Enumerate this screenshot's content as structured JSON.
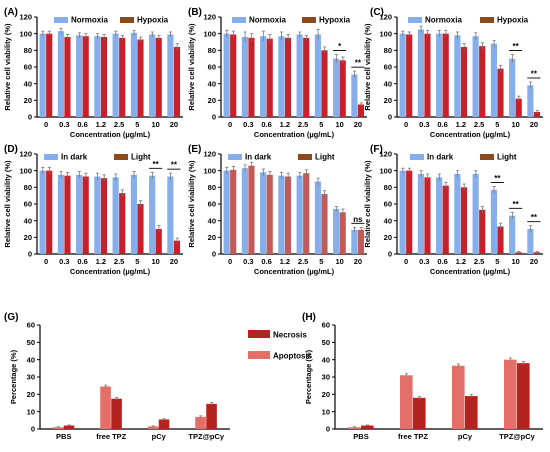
{
  "colors": {
    "normoxia": "#86aeea",
    "hypoxia": "#c8202a",
    "dark": "#86aeea",
    "light": "#c8202a",
    "light_legend": "#8a4a1e",
    "hypoxia_legend": "#8a4a1e",
    "necrosis": "#b3231f",
    "apoptosis": "#e46f69",
    "light_alt": "#c25a57"
  },
  "chart_data": [
    {
      "id": "A",
      "label": "(A)",
      "type": "bar",
      "xlabel": "Concentration (µg/mL)",
      "ylabel": "Relative cell viability (%)",
      "ylim": [
        0,
        120
      ],
      "yticks": [
        0,
        20,
        40,
        60,
        80,
        100,
        120
      ],
      "categories": [
        "0",
        "0.3",
        "0.6",
        "1.2",
        "2.5",
        "5",
        "10",
        "20"
      ],
      "legend": {
        "placement": "top",
        "entries": [
          "Normoxia",
          "Hypoxia"
        ]
      },
      "series": [
        {
          "name": "Normoxia",
          "values": [
            100,
            103,
            98,
            97,
            100,
            101,
            99,
            99
          ],
          "errors": [
            3,
            3,
            3,
            3,
            3,
            3,
            3,
            3
          ]
        },
        {
          "name": "Hypoxia",
          "values": [
            100,
            96,
            97,
            96,
            95,
            93,
            95,
            84
          ],
          "errors": [
            3,
            3,
            3,
            3,
            3,
            3,
            3,
            4
          ]
        }
      ],
      "significance": []
    },
    {
      "id": "B",
      "label": "(B)",
      "type": "bar",
      "xlabel": "Concentration (µg/mL)",
      "ylabel": "Relative cell viability (%)",
      "ylim": [
        0,
        120
      ],
      "yticks": [
        0,
        20,
        40,
        60,
        80,
        100,
        120
      ],
      "categories": [
        "0",
        "0.3",
        "0.6",
        "1.2",
        "2.5",
        "5",
        "10",
        "20"
      ],
      "legend": {
        "placement": "top",
        "entries": [
          "Normoxia",
          "Hypoxia"
        ]
      },
      "series": [
        {
          "name": "Normoxia",
          "values": [
            100,
            96,
            97,
            97,
            99,
            99,
            70,
            51
          ],
          "errors": [
            4,
            6,
            6,
            5,
            3,
            6,
            5,
            4
          ]
        },
        {
          "name": "Hypoxia",
          "values": [
            99,
            95,
            94,
            95,
            95,
            80,
            68,
            15
          ],
          "errors": [
            4,
            5,
            5,
            4,
            3,
            4,
            4,
            2
          ]
        }
      ],
      "significance": [
        {
          "category_index": 6,
          "text": "*"
        },
        {
          "category_index": 7,
          "text": "**"
        }
      ]
    },
    {
      "id": "C",
      "label": "(C)",
      "type": "bar",
      "xlabel": "Concentration (µg/mL)",
      "ylabel": "Relative cell viability (%)",
      "ylim": [
        0,
        120
      ],
      "yticks": [
        0,
        20,
        40,
        60,
        80,
        100,
        120
      ],
      "categories": [
        "0",
        "0.3",
        "0.6",
        "1.2",
        "2.5",
        "5",
        "10",
        "20"
      ],
      "legend": {
        "placement": "top",
        "entries": [
          "Normoxia",
          "Hypoxia"
        ]
      },
      "series": [
        {
          "name": "Normoxia",
          "values": [
            100,
            105,
            100,
            98,
            97,
            88,
            70,
            38
          ],
          "errors": [
            3,
            4,
            4,
            4,
            4,
            4,
            5,
            4
          ]
        },
        {
          "name": "Hypoxia",
          "values": [
            99,
            100,
            100,
            84,
            85,
            58,
            22,
            6
          ],
          "errors": [
            3,
            4,
            4,
            4,
            4,
            4,
            3,
            2
          ]
        }
      ],
      "significance": [
        {
          "category_index": 6,
          "text": "**"
        },
        {
          "category_index": 7,
          "text": "**"
        }
      ]
    },
    {
      "id": "D",
      "label": "(D)",
      "type": "bar",
      "xlabel": "Concentration (µg/mL)",
      "ylabel": "Relative cell viability (%)",
      "ylim": [
        0,
        120
      ],
      "yticks": [
        0,
        20,
        40,
        60,
        80,
        100,
        120
      ],
      "categories": [
        "0",
        "0.3",
        "0.6",
        "1.2",
        "2.5",
        "5",
        "10",
        "20"
      ],
      "legend": {
        "placement": "top",
        "entries": [
          "In dark",
          "Light"
        ]
      },
      "series": [
        {
          "name": "In dark",
          "values": [
            100,
            95,
            95,
            93,
            92,
            95,
            94,
            93
          ],
          "errors": [
            4,
            4,
            4,
            4,
            4,
            4,
            4,
            4
          ]
        },
        {
          "name": "Light",
          "values": [
            100,
            94,
            93,
            91,
            73,
            60,
            30,
            16
          ],
          "errors": [
            4,
            4,
            4,
            4,
            4,
            4,
            4,
            3
          ]
        }
      ],
      "significance": [
        {
          "category_index": 6,
          "text": "**"
        },
        {
          "category_index": 7,
          "text": "**"
        }
      ]
    },
    {
      "id": "E",
      "label": "(E)",
      "type": "bar",
      "xlabel": "Concentration (µg/mL)",
      "ylabel": "Relative cell viability (%)",
      "ylim": [
        0,
        120
      ],
      "yticks": [
        0,
        20,
        40,
        60,
        80,
        100,
        120
      ],
      "categories": [
        "0",
        "0.3",
        "0.6",
        "1.2",
        "2.5",
        "5",
        "10",
        "20"
      ],
      "legend": {
        "placement": "top",
        "entries": [
          "In dark",
          "Light"
        ]
      },
      "series": [
        {
          "name": "In dark",
          "values": [
            100,
            103,
            98,
            94,
            94,
            87,
            54,
            29
          ],
          "errors": [
            4,
            4,
            4,
            4,
            4,
            4,
            3,
            3
          ]
        },
        {
          "name": "Light",
          "values": [
            101,
            106,
            95,
            93,
            97,
            72,
            50,
            29
          ],
          "errors": [
            4,
            4,
            4,
            4,
            4,
            4,
            4,
            3
          ]
        }
      ],
      "significance": [
        {
          "category_index": 7,
          "text": "ns"
        }
      ]
    },
    {
      "id": "F",
      "label": "(F)",
      "type": "bar",
      "xlabel": "Concentration (µg/mL)",
      "ylabel": "Relative cell viability (%)",
      "ylim": [
        0,
        120
      ],
      "yticks": [
        0,
        20,
        40,
        60,
        80,
        100,
        120
      ],
      "categories": [
        "0",
        "0.3",
        "0.6",
        "1.2",
        "2.5",
        "5",
        "10",
        "20"
      ],
      "legend": {
        "placement": "top",
        "entries": [
          "In dark",
          "Light"
        ]
      },
      "series": [
        {
          "name": "In dark",
          "values": [
            100,
            96,
            92,
            96,
            96,
            77,
            46,
            30
          ],
          "errors": [
            3,
            4,
            4,
            4,
            4,
            4,
            4,
            4
          ]
        },
        {
          "name": "Light",
          "values": [
            100,
            92,
            82,
            80,
            53,
            33,
            2,
            2
          ],
          "errors": [
            3,
            4,
            4,
            4,
            4,
            4,
            1,
            1
          ]
        }
      ],
      "significance": [
        {
          "category_index": 5,
          "text": "**"
        },
        {
          "category_index": 6,
          "text": "**"
        },
        {
          "category_index": 7,
          "text": "**"
        }
      ]
    },
    {
      "id": "G",
      "label": "(G)",
      "type": "bar",
      "xlabel": "",
      "ylabel": "Percentage (%)",
      "ylim": [
        0,
        60
      ],
      "yticks": [
        0,
        10,
        20,
        30,
        40,
        50,
        60
      ],
      "categories": [
        "PBS",
        "free TPZ",
        "pCy",
        "TPZ@pCy"
      ],
      "legend": {
        "placement": "right",
        "entries": [
          "Necrosis",
          "Apoptosis"
        ]
      },
      "series": [
        {
          "name": "Apoptosis",
          "values": [
            1.0,
            24.5,
            1.5,
            7.0
          ],
          "errors": [
            0.3,
            0.8,
            0.3,
            0.6
          ]
        },
        {
          "name": "Necrosis",
          "values": [
            2.0,
            17.5,
            5.5,
            14.5
          ],
          "errors": [
            0.3,
            0.8,
            0.4,
            0.7
          ]
        }
      ],
      "significance": []
    },
    {
      "id": "H",
      "label": "(H)",
      "type": "bar",
      "xlabel": "",
      "ylabel": "Percentage (%)",
      "ylim": [
        0,
        60
      ],
      "yticks": [
        0,
        10,
        20,
        30,
        40,
        50,
        60
      ],
      "categories": [
        "PBS",
        "free TPZ",
        "pCy",
        "TPZ@pCy"
      ],
      "legend": {
        "placement": "none",
        "entries": []
      },
      "series": [
        {
          "name": "Apoptosis",
          "values": [
            1.0,
            31.0,
            36.5,
            40.0
          ],
          "errors": [
            0.3,
            0.9,
            1.0,
            1.0
          ]
        },
        {
          "name": "Necrosis",
          "values": [
            2.0,
            18.0,
            19.0,
            38.0
          ],
          "errors": [
            0.3,
            0.7,
            0.8,
            1.0
          ]
        }
      ],
      "significance": []
    }
  ]
}
